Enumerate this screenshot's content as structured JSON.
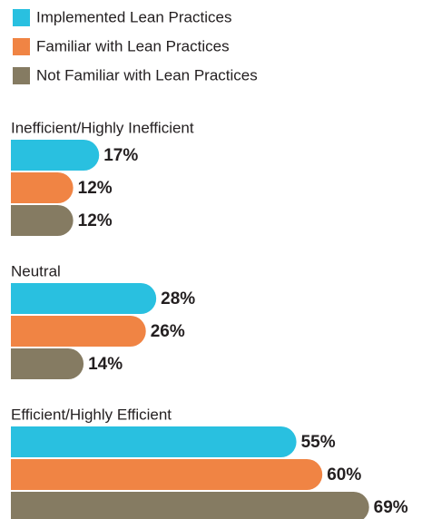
{
  "chart_data": {
    "type": "bar",
    "orientation": "horizontal",
    "categories": [
      "Inefficient/Highly Inefficient",
      "Neutral",
      "Efficient/Highly Efficient"
    ],
    "series": [
      {
        "name": "Implemented Lean Practices",
        "color": "#29c0e0",
        "values": [
          17,
          28,
          55
        ],
        "value_labels": [
          "17%",
          "28%",
          "55%"
        ]
      },
      {
        "name": "Familiar with Lean Practices",
        "color": "#f08444",
        "values": [
          12,
          26,
          60
        ],
        "value_labels": [
          "12%",
          "26%",
          "60%"
        ]
      },
      {
        "name": "Not Familiar with Lean Practices",
        "color": "#857b62",
        "values": [
          12,
          14,
          69
        ],
        "value_labels": [
          "12%",
          "14%",
          "69%"
        ]
      }
    ]
  }
}
